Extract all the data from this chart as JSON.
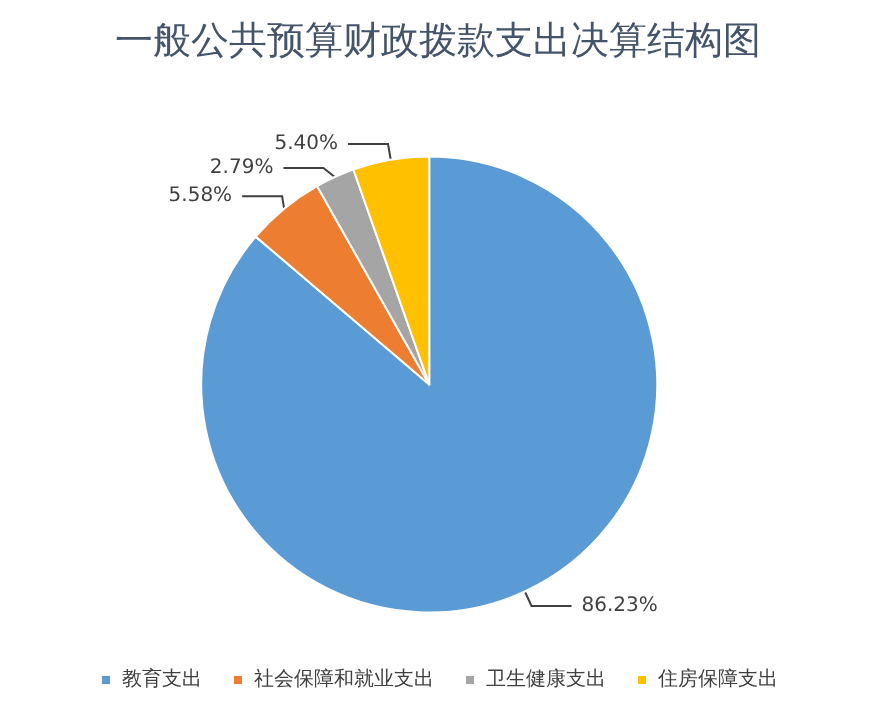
{
  "chart_data": {
    "type": "pie",
    "title": "一般公共预算财政拨款支出决算结构图",
    "categories": [
      "教育支出",
      "社会保障和就业支出",
      "卫生健康支出",
      "住房保障支出"
    ],
    "values": [
      86.23,
      5.58,
      2.79,
      5.4
    ],
    "colors": [
      "#5b9bd5",
      "#ed7d31",
      "#a5a5a5",
      "#ffc000"
    ],
    "value_labels": [
      "86.23%",
      "5.58%",
      "2.79%",
      "5.40%"
    ],
    "legend": "bottom"
  }
}
